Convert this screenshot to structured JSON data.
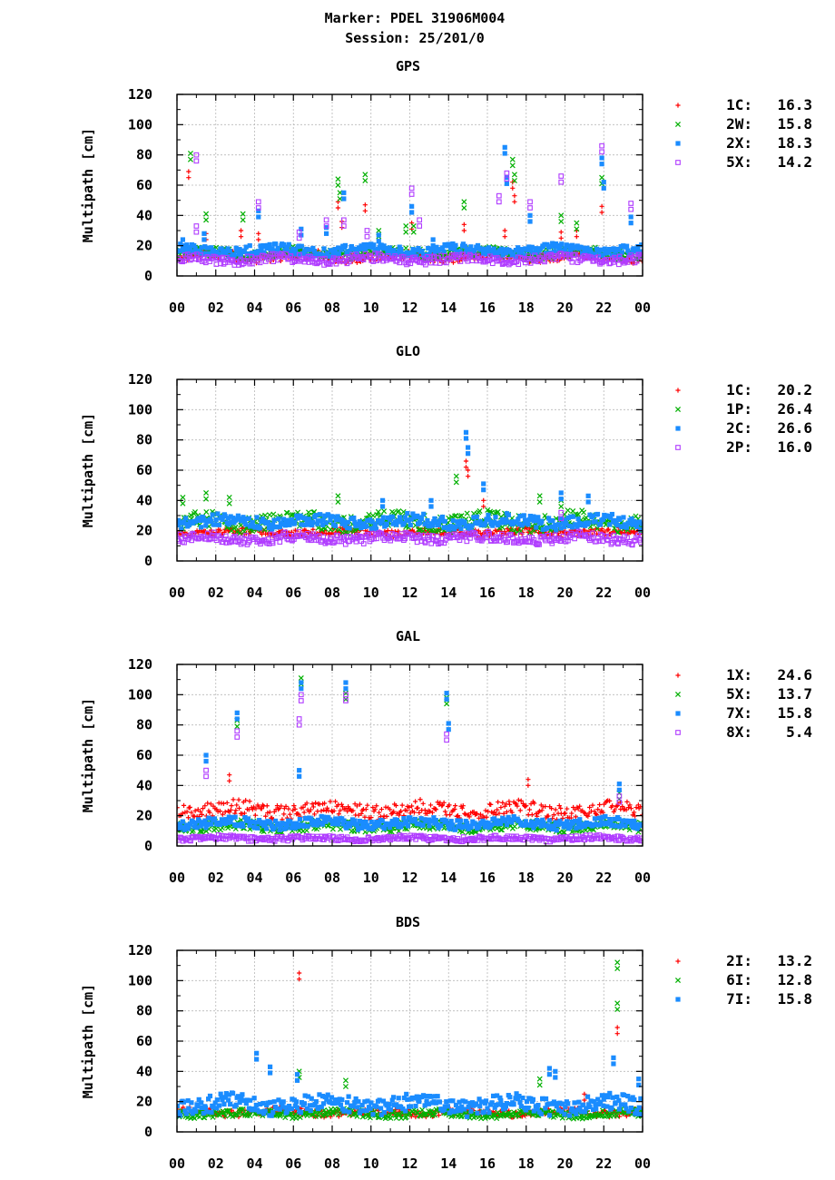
{
  "header": {
    "line1": "Marker: PDEL 31906M004",
    "line2": "Session: 25/201/0"
  },
  "colors": {
    "red": "#ff0000",
    "green": "#00b000",
    "blue": "#1a8cff",
    "purple": "#b03cff",
    "grid": "#b8b8b8"
  },
  "chart_data": [
    {
      "type": "scatter",
      "title": "GPS",
      "ylabel": "Multipath [cm]",
      "xlabel": "",
      "xlim": [
        0,
        24
      ],
      "ylim": [
        0,
        120
      ],
      "grid": true,
      "legend_position": "right",
      "x_ticks": [
        "00",
        "02",
        "04",
        "06",
        "08",
        "10",
        "12",
        "14",
        "16",
        "18",
        "20",
        "22",
        "00"
      ],
      "y_ticks": [
        "0",
        "20",
        "40",
        "60",
        "80",
        "100",
        "120"
      ],
      "series": [
        {
          "name": "1C",
          "value": "16.3",
          "color": "red",
          "marker": "plus",
          "base": 13,
          "amp": 4,
          "spikes": [
            [
              0.6,
              69
            ],
            [
              1.5,
              28
            ],
            [
              3.3,
              30
            ],
            [
              4.2,
              28
            ],
            [
              8.3,
              49
            ],
            [
              8.5,
              36
            ],
            [
              9.7,
              47
            ],
            [
              12.1,
              35
            ],
            [
              14.8,
              34
            ],
            [
              16.9,
              30
            ],
            [
              17.3,
              62
            ],
            [
              17.4,
              53
            ],
            [
              19.8,
              29
            ],
            [
              20.6,
              30
            ],
            [
              21.9,
              46
            ]
          ]
        },
        {
          "name": "2W",
          "value": "15.8",
          "color": "green",
          "marker": "x",
          "base": 15,
          "amp": 4,
          "spikes": [
            [
              0.7,
              81
            ],
            [
              1.5,
              41
            ],
            [
              3.4,
              41
            ],
            [
              8.3,
              64
            ],
            [
              8.4,
              55
            ],
            [
              9.7,
              67
            ],
            [
              10.4,
              30
            ],
            [
              11.8,
              33
            ],
            [
              12.2,
              33
            ],
            [
              14.8,
              49
            ],
            [
              17.3,
              77
            ],
            [
              17.4,
              67
            ],
            [
              19.8,
              40
            ],
            [
              20.6,
              35
            ],
            [
              21.9,
              65
            ]
          ]
        },
        {
          "name": "2X",
          "value": "18.3",
          "color": "blue",
          "marker": "square",
          "base": 17,
          "amp": 4,
          "spikes": [
            [
              0.3,
              24
            ],
            [
              1.4,
              28
            ],
            [
              4.2,
              43
            ],
            [
              6.4,
              31
            ],
            [
              7.7,
              32
            ],
            [
              8.6,
              55
            ],
            [
              10.4,
              27
            ],
            [
              12.1,
              46
            ],
            [
              13.2,
              24
            ],
            [
              16.9,
              85
            ],
            [
              17.0,
              65
            ],
            [
              18.2,
              40
            ],
            [
              21.9,
              78
            ],
            [
              22.0,
              62
            ],
            [
              23.4,
              39
            ]
          ]
        },
        {
          "name": "5X",
          "value": "14.2",
          "color": "purple",
          "marker": "open-square",
          "base": 11,
          "amp": 3.5,
          "spikes": [
            [
              1.0,
              80
            ],
            [
              1.0,
              33
            ],
            [
              4.2,
              49
            ],
            [
              6.3,
              29
            ],
            [
              7.7,
              37
            ],
            [
              8.6,
              37
            ],
            [
              9.8,
              30
            ],
            [
              12.1,
              58
            ],
            [
              12.5,
              37
            ],
            [
              16.6,
              53
            ],
            [
              17.0,
              68
            ],
            [
              18.2,
              49
            ],
            [
              19.8,
              66
            ],
            [
              21.9,
              86
            ],
            [
              23.4,
              48
            ]
          ]
        }
      ]
    },
    {
      "type": "scatter",
      "title": "GLO",
      "ylabel": "Multipath [cm]",
      "xlabel": "",
      "xlim": [
        0,
        24
      ],
      "ylim": [
        0,
        120
      ],
      "grid": true,
      "legend_position": "right",
      "x_ticks": [
        "00",
        "02",
        "04",
        "06",
        "08",
        "10",
        "12",
        "14",
        "16",
        "18",
        "20",
        "22",
        "00"
      ],
      "y_ticks": [
        "0",
        "20",
        "40",
        "60",
        "80",
        "100",
        "120"
      ],
      "series": [
        {
          "name": "1C",
          "value": "20.2",
          "color": "red",
          "marker": "plus",
          "base": 19,
          "amp": 3,
          "spikes": [
            [
              14.9,
              66
            ],
            [
              15.0,
              60
            ],
            [
              15.8,
              40
            ]
          ]
        },
        {
          "name": "1P",
          "value": "26.4",
          "color": "green",
          "marker": "x",
          "base": 26,
          "amp": 7,
          "spikes": [
            [
              0.3,
              42
            ],
            [
              1.5,
              45
            ],
            [
              2.7,
              42
            ],
            [
              8.3,
              43
            ],
            [
              14.4,
              56
            ],
            [
              18.7,
              43
            ],
            [
              19.8,
              40
            ]
          ]
        },
        {
          "name": "2C",
          "value": "26.6",
          "color": "blue",
          "marker": "square",
          "base": 26,
          "amp": 5,
          "spikes": [
            [
              10.6,
              40
            ],
            [
              13.1,
              40
            ],
            [
              14.9,
              85
            ],
            [
              15.0,
              75
            ],
            [
              15.8,
              51
            ],
            [
              19.8,
              45
            ],
            [
              21.2,
              43
            ]
          ]
        },
        {
          "name": "2P",
          "value": "16.0",
          "color": "purple",
          "marker": "open-square",
          "base": 15,
          "amp": 4,
          "spikes": [
            [
              19.8,
              32
            ]
          ]
        }
      ]
    },
    {
      "type": "scatter",
      "title": "GAL",
      "ylabel": "Multipath [cm]",
      "xlabel": "",
      "xlim": [
        0,
        24
      ],
      "ylim": [
        0,
        120
      ],
      "grid": true,
      "legend_position": "right",
      "x_ticks": [
        "00",
        "02",
        "04",
        "06",
        "08",
        "10",
        "12",
        "14",
        "16",
        "18",
        "20",
        "22",
        "00"
      ],
      "y_ticks": [
        "0",
        "20",
        "40",
        "60",
        "80",
        "100",
        "120"
      ],
      "series": [
        {
          "name": "1X",
          "value": "24.6",
          "color": "red",
          "marker": "plus",
          "base": 24,
          "amp": 6,
          "spikes": [
            [
              2.7,
              47
            ],
            [
              18.1,
              44
            ]
          ]
        },
        {
          "name": "5X",
          "value": "13.7",
          "color": "green",
          "marker": "x",
          "base": 13,
          "amp": 4,
          "spikes": [
            [
              3.1,
              83
            ],
            [
              6.4,
              111
            ],
            [
              8.7,
              101
            ],
            [
              13.9,
              98
            ],
            [
              22.8,
              35
            ]
          ]
        },
        {
          "name": "7X",
          "value": "15.8",
          "color": "blue",
          "marker": "square",
          "base": 15,
          "amp": 4,
          "spikes": [
            [
              1.5,
              60
            ],
            [
              3.1,
              88
            ],
            [
              6.3,
              50
            ],
            [
              6.4,
              108
            ],
            [
              8.7,
              108
            ],
            [
              13.9,
              101
            ],
            [
              14.0,
              81
            ],
            [
              22.8,
              41
            ]
          ]
        },
        {
          "name": "8X",
          "value": "5.4",
          "color": "purple",
          "marker": "open-square",
          "base": 5,
          "amp": 2,
          "spikes": [
            [
              1.5,
              50
            ],
            [
              3.1,
              76
            ],
            [
              6.4,
              100
            ],
            [
              6.3,
              84
            ],
            [
              8.7,
              100
            ],
            [
              13.9,
              74
            ],
            [
              22.8,
              33
            ]
          ]
        }
      ]
    },
    {
      "type": "scatter",
      "title": "BDS",
      "ylabel": "Multipath [cm]",
      "xlabel": "",
      "xlim": [
        0,
        24
      ],
      "ylim": [
        0,
        120
      ],
      "grid": true,
      "legend_position": "right",
      "x_ticks": [
        "00",
        "02",
        "04",
        "06",
        "08",
        "10",
        "12",
        "14",
        "16",
        "18",
        "20",
        "22",
        "00"
      ],
      "y_ticks": [
        "0",
        "20",
        "40",
        "60",
        "80",
        "100",
        "120"
      ],
      "series": [
        {
          "name": "2I",
          "value": "13.2",
          "color": "red",
          "marker": "plus",
          "base": 13,
          "amp": 3,
          "spikes": [
            [
              6.3,
              105
            ],
            [
              22.7,
              69
            ],
            [
              21.0,
              25
            ]
          ]
        },
        {
          "name": "6I",
          "value": "12.8",
          "color": "green",
          "marker": "x",
          "base": 12,
          "amp": 3,
          "spikes": [
            [
              6.3,
              40
            ],
            [
              8.7,
              34
            ],
            [
              18.7,
              35
            ],
            [
              22.7,
              112
            ],
            [
              22.7,
              85
            ]
          ]
        },
        {
          "name": "7I",
          "value": "15.8",
          "color": "blue",
          "marker": "square",
          "base": 18,
          "amp": 7,
          "spikes": [
            [
              4.1,
              52
            ],
            [
              4.8,
              43
            ],
            [
              6.2,
              38
            ],
            [
              19.2,
              42
            ],
            [
              19.5,
              40
            ],
            [
              22.5,
              49
            ],
            [
              23.8,
              35
            ]
          ]
        }
      ]
    }
  ]
}
